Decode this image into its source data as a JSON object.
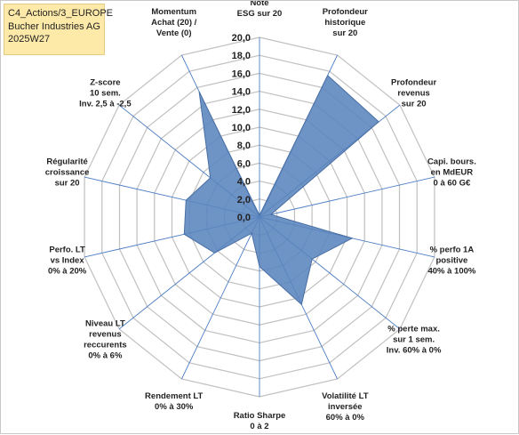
{
  "info": {
    "line1": "C4_Actions/3_EUROPE",
    "line2": "Bucher Industries AG",
    "line3": "2025W27"
  },
  "colors": {
    "fill": "#5a84bd",
    "stroke": "#4a6fa5",
    "grid": "#c0c0c0",
    "spoke": "#4f7fc4",
    "info_bg": "#fde9a8"
  },
  "chart_data": {
    "type": "radar",
    "title": "",
    "rmax": 20,
    "ticks": [
      "0,0",
      "2,0",
      "4,0",
      "6,0",
      "8,0",
      "10,0",
      "12,0",
      "14,0",
      "16,0",
      "18,0",
      "20,0"
    ],
    "axes": [
      [
        "Note",
        "ESG sur 20"
      ],
      [
        "Profondeur",
        "historique",
        "sur 20"
      ],
      [
        "Profondeur",
        "revenus",
        "sur 20"
      ],
      [
        "Capi. bours.",
        "en MdEUR",
        "0 à 60 G€"
      ],
      [
        "% perfo 1A",
        "positive",
        "40% à 100%"
      ],
      [
        "% perte max.",
        "sur 1 sem.",
        "Inv. 60% à 0%"
      ],
      [
        "Volatilité LT",
        "inversée",
        "60% à 0%"
      ],
      [
        "Ratio Sharpe",
        "0 à 2"
      ],
      [
        "Rendement LT",
        "0% à 30%"
      ],
      [
        "Niveau LT",
        "revenus",
        "reccurents",
        "0% à 6%"
      ],
      [
        "Perfo. LT",
        "vs Index",
        "0% à 20%"
      ],
      [
        "Régularité",
        "croissance",
        "sur 20"
      ],
      [
        "Z-score",
        "10 sem.",
        "Inv. 2,5 à -2,5"
      ],
      [
        "Momentum",
        "Achat (20) /",
        "Vente (0)"
      ]
    ],
    "series": [
      {
        "values": [
          0.2,
          17.5,
          17.0,
          1.3,
          10.6,
          7.5,
          10.8,
          5.5,
          2.0,
          6.4,
          8.6,
          8.4,
          7.0,
          15.5
        ]
      }
    ]
  }
}
